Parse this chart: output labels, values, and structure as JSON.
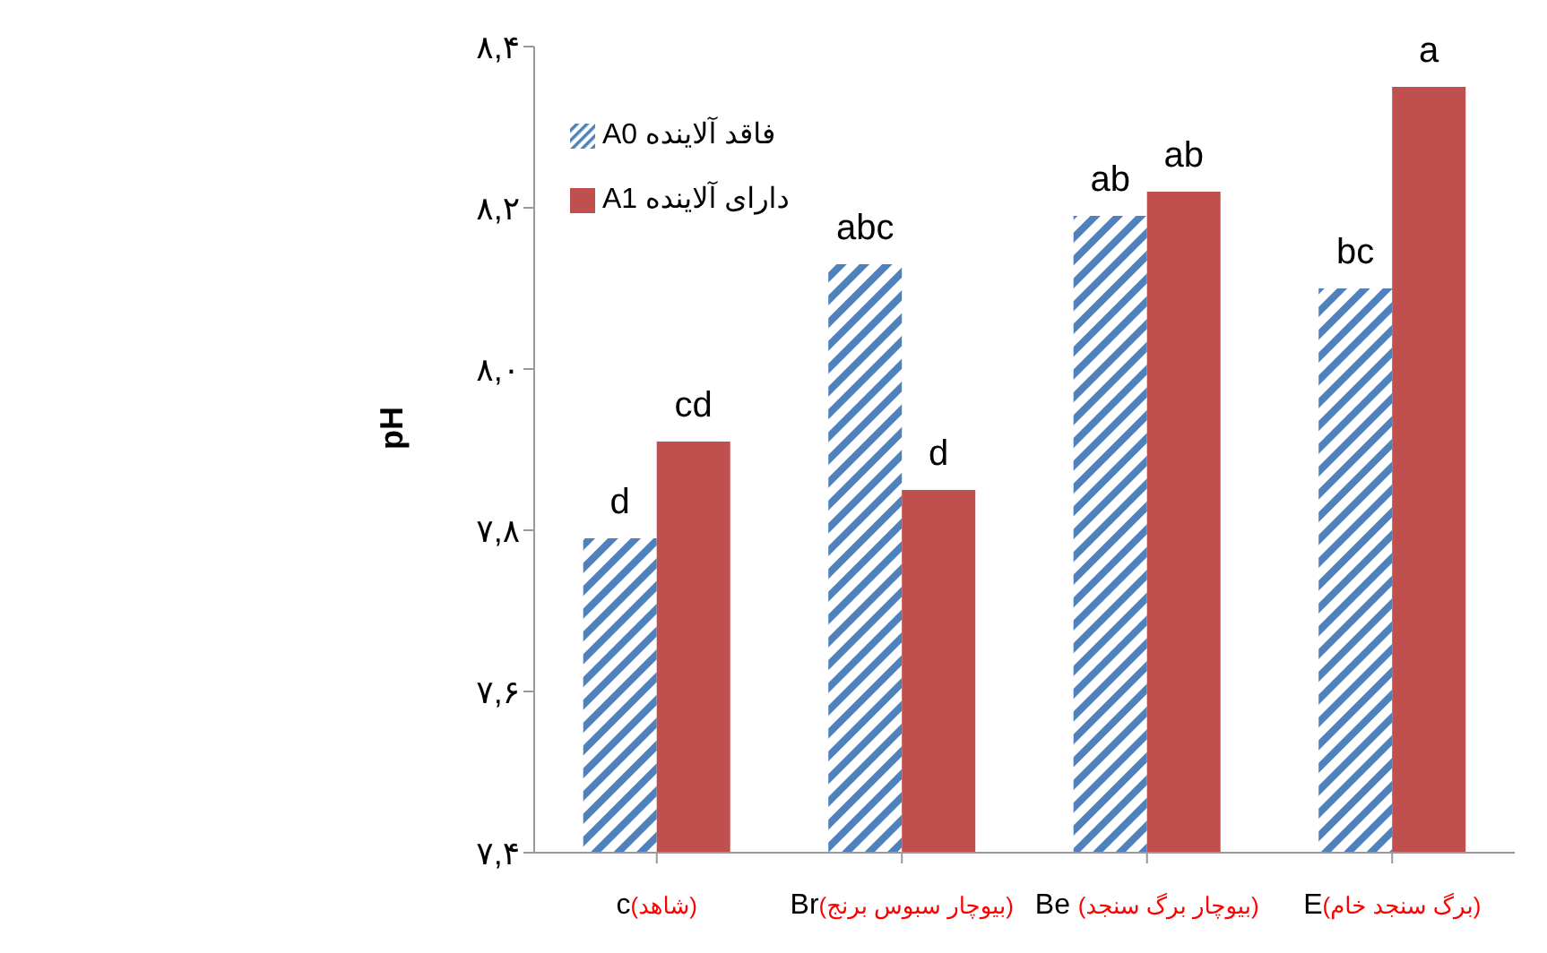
{
  "chart_data": {
    "type": "bar",
    "ylabel": "pH",
    "categories": [
      "c(شاهد)",
      "Br(بیوچار سبوس برنج)",
      "Be (بیوچار برگ سنجد)",
      "E(برگ سنجد خام)"
    ],
    "series": [
      {
        "name": "فاقد آلاینده A0",
        "color": "#4f81bd",
        "values": [
          7.79,
          8.13,
          8.19,
          8.1
        ],
        "value_labels": [
          "d",
          "abc",
          "ab",
          "bc"
        ]
      },
      {
        "name": "دارای آلاینده A1",
        "color": "#c0504d",
        "values": [
          7.91,
          7.85,
          8.22,
          8.35
        ],
        "value_labels": [
          "cd",
          "d",
          "ab",
          "a"
        ]
      }
    ],
    "ylim": [
      7.4,
      8.4
    ],
    "yticks": [
      {
        "value": 7.4,
        "label": "۷,۴"
      },
      {
        "value": 7.6,
        "label": "۷,۶"
      },
      {
        "value": 7.8,
        "label": "۷,۸"
      },
      {
        "value": 8.0,
        "label": "۸,۰"
      },
      {
        "value": 8.2,
        "label": "۸,۲"
      },
      {
        "value": 8.4,
        "label": "۸,۴"
      }
    ],
    "grid": false,
    "legend": "top left"
  }
}
